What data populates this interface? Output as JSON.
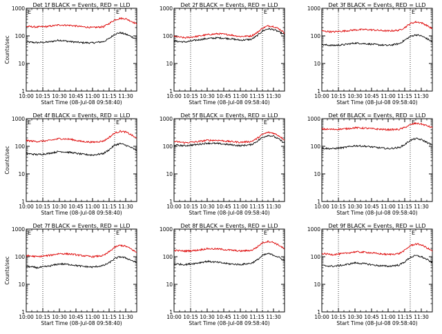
{
  "colors": {
    "events": "#000000",
    "lld": "#dd0000",
    "axes": "#000000",
    "background": "#ffffff"
  },
  "chart_data": [
    {
      "type": "line",
      "title": "Det 1f BLACK = Events, RED = LLD",
      "xlabel": "Start Time (08-Jul-08 09:58:40)",
      "ylabel": "Counts/sec",
      "xlim": [
        "10:00",
        "11:40"
      ],
      "ylim": [
        1,
        1000
      ],
      "yscale": "log",
      "xticks": [
        "10:00",
        "10:15",
        "10:30",
        "10:45",
        "11:00",
        "11:15",
        "11:30"
      ],
      "yticks": [
        "1",
        "10",
        "100",
        "1000"
      ],
      "event_markers": [
        {
          "time": "10:15",
          "label": ""
        },
        {
          "time": "11:20",
          "label": "E"
        },
        {
          "time": "10:00",
          "label": "E"
        }
      ],
      "grid": false,
      "series": [
        {
          "x": [
            "10:00",
            "10:10",
            "10:20",
            "10:30",
            "10:40",
            "10:50",
            "11:00",
            "11:10",
            "11:15",
            "11:20",
            "11:25",
            "11:30",
            "11:35",
            "11:40"
          ],
          "values": [
            60,
            57,
            60,
            70,
            62,
            57,
            56,
            62,
            80,
            115,
            130,
            115,
            95,
            75
          ],
          "color": "#000000"
        },
        {
          "x": [
            "10:00",
            "10:10",
            "10:20",
            "10:30",
            "10:40",
            "10:50",
            "11:00",
            "11:10",
            "11:15",
            "11:20",
            "11:25",
            "11:30",
            "11:35",
            "11:40"
          ],
          "values": [
            220,
            210,
            220,
            250,
            240,
            215,
            200,
            215,
            280,
            380,
            430,
            420,
            340,
            270
          ],
          "color": "#dd0000"
        }
      ]
    },
    {
      "type": "line",
      "title": "Det 2f BLACK = Events, RED = LLD",
      "xlabel": "Start Time (08-Jul-08 09:58:40)",
      "ylabel": "",
      "xlim": [
        "10:00",
        "11:40"
      ],
      "ylim": [
        1,
        1000
      ],
      "yscale": "log",
      "xticks": [
        "10:00",
        "10:15",
        "10:30",
        "10:45",
        "11:00",
        "11:15",
        "11:30"
      ],
      "yticks": [
        "1",
        "10",
        "100",
        "1000"
      ],
      "event_markers": [
        {
          "time": "10:15",
          "label": ""
        },
        {
          "time": "11:20",
          "label": "E"
        }
      ],
      "grid": false,
      "series": [
        {
          "x": [
            "10:00",
            "10:10",
            "10:20",
            "10:30",
            "10:40",
            "10:50",
            "11:00",
            "11:10",
            "11:15",
            "11:20",
            "11:25",
            "11:30",
            "11:35",
            "11:40"
          ],
          "values": [
            65,
            60,
            70,
            80,
            85,
            80,
            70,
            75,
            100,
            150,
            180,
            170,
            140,
            110
          ],
          "color": "#000000"
        },
        {
          "x": [
            "10:00",
            "10:10",
            "10:20",
            "10:30",
            "10:40",
            "10:50",
            "11:00",
            "11:10",
            "11:15",
            "11:20",
            "11:25",
            "11:30",
            "11:35",
            "11:40"
          ],
          "values": [
            95,
            85,
            95,
            110,
            120,
            110,
            95,
            100,
            130,
            190,
            230,
            220,
            180,
            130
          ],
          "color": "#dd0000"
        }
      ]
    },
    {
      "type": "line",
      "title": "Det 3f BLACK = Events, RED = LLD",
      "xlabel": "Start Time (08-Jul-08 09:58:40)",
      "ylabel": "",
      "xlim": [
        "10:00",
        "11:40"
      ],
      "ylim": [
        1,
        1000
      ],
      "yscale": "log",
      "xticks": [
        "10:00",
        "10:15",
        "10:30",
        "10:45",
        "11:00",
        "11:15",
        "11:30"
      ],
      "yticks": [
        "1",
        "10",
        "100",
        "1000"
      ],
      "event_markers": [
        {
          "time": "10:15",
          "label": ""
        },
        {
          "time": "11:20",
          "label": "E"
        }
      ],
      "grid": false,
      "series": [
        {
          "x": [
            "10:00",
            "10:10",
            "10:20",
            "10:30",
            "10:40",
            "10:50",
            "11:00",
            "11:10",
            "11:15",
            "11:20",
            "11:25",
            "11:30",
            "11:35",
            "11:40"
          ],
          "values": [
            48,
            45,
            48,
            55,
            52,
            48,
            45,
            52,
            70,
            95,
            110,
            100,
            80,
            60
          ],
          "color": "#000000"
        },
        {
          "x": [
            "10:00",
            "10:10",
            "10:20",
            "10:30",
            "10:40",
            "10:50",
            "11:00",
            "11:10",
            "11:15",
            "11:20",
            "11:25",
            "11:30",
            "11:35",
            "11:40"
          ],
          "values": [
            150,
            140,
            150,
            165,
            170,
            160,
            150,
            160,
            200,
            280,
            320,
            300,
            240,
            180
          ],
          "color": "#dd0000"
        }
      ]
    },
    {
      "type": "line",
      "title": "Det 4f BLACK = Events, RED = LLD",
      "xlabel": "Start Time (08-Jul-08 09:58:40)",
      "ylabel": "Counts/sec",
      "xlim": [
        "10:00",
        "11:40"
      ],
      "ylim": [
        1,
        1000
      ],
      "yscale": "log",
      "xticks": [
        "10:00",
        "10:15",
        "10:30",
        "10:45",
        "11:00",
        "11:15",
        "11:30"
      ],
      "yticks": [
        "1",
        "10",
        "100",
        "1000"
      ],
      "event_markers": [
        {
          "time": "10:15",
          "label": ""
        },
        {
          "time": "11:20",
          "label": "E"
        },
        {
          "time": "10:00",
          "label": "E"
        }
      ],
      "grid": false,
      "series": [
        {
          "x": [
            "10:00",
            "10:10",
            "10:20",
            "10:30",
            "10:40",
            "10:50",
            "11:00",
            "11:10",
            "11:15",
            "11:20",
            "11:25",
            "11:30",
            "11:35",
            "11:40"
          ],
          "values": [
            55,
            50,
            55,
            65,
            60,
            52,
            48,
            55,
            75,
            110,
            125,
            110,
            90,
            70
          ],
          "color": "#000000"
        },
        {
          "x": [
            "10:00",
            "10:10",
            "10:20",
            "10:30",
            "10:40",
            "10:50",
            "11:00",
            "11:10",
            "11:15",
            "11:20",
            "11:25",
            "11:30",
            "11:35",
            "11:40"
          ],
          "values": [
            160,
            150,
            160,
            190,
            180,
            150,
            140,
            155,
            210,
            300,
            350,
            330,
            260,
            190
          ],
          "color": "#dd0000"
        }
      ]
    },
    {
      "type": "line",
      "title": "Det 5f BLACK = Events, RED = LLD",
      "xlabel": "Start Time (08-Jul-08 09:58:40)",
      "ylabel": "",
      "xlim": [
        "10:00",
        "11:40"
      ],
      "ylim": [
        1,
        1000
      ],
      "yscale": "log",
      "xticks": [
        "10:00",
        "10:15",
        "10:30",
        "10:45",
        "11:00",
        "11:15",
        "11:30"
      ],
      "yticks": [
        "1",
        "10",
        "100",
        "1000"
      ],
      "event_markers": [
        {
          "time": "10:15",
          "label": ""
        },
        {
          "time": "11:20",
          "label": "E"
        }
      ],
      "grid": false,
      "series": [
        {
          "x": [
            "10:00",
            "10:10",
            "10:20",
            "10:30",
            "10:40",
            "10:50",
            "11:00",
            "11:10",
            "11:15",
            "11:20",
            "11:25",
            "11:30",
            "11:35",
            "11:40"
          ],
          "values": [
            110,
            105,
            115,
            130,
            125,
            115,
            105,
            115,
            150,
            210,
            250,
            230,
            180,
            130
          ],
          "color": "#000000"
        },
        {
          "x": [
            "10:00",
            "10:10",
            "10:20",
            "10:30",
            "10:40",
            "10:50",
            "11:00",
            "11:10",
            "11:15",
            "11:20",
            "11:25",
            "11:30",
            "11:35",
            "11:40"
          ],
          "values": [
            150,
            135,
            145,
            165,
            165,
            150,
            140,
            150,
            190,
            270,
            320,
            300,
            240,
            170
          ],
          "color": "#dd0000"
        }
      ]
    },
    {
      "type": "line",
      "title": "Det 6f BLACK = Events, RED = LLD",
      "xlabel": "Start Time (08-Jul-08 09:58:40)",
      "ylabel": "",
      "xlim": [
        "10:00",
        "11:40"
      ],
      "ylim": [
        1,
        1000
      ],
      "yscale": "log",
      "xticks": [
        "10:00",
        "10:15",
        "10:30",
        "10:45",
        "11:00",
        "11:15",
        "11:30"
      ],
      "yticks": [
        "1",
        "10",
        "100",
        "1000"
      ],
      "event_markers": [
        {
          "time": "10:15",
          "label": ""
        },
        {
          "time": "11:20",
          "label": "E"
        }
      ],
      "grid": false,
      "series": [
        {
          "x": [
            "10:00",
            "10:10",
            "10:20",
            "10:30",
            "10:40",
            "10:50",
            "11:00",
            "11:10",
            "11:15",
            "11:20",
            "11:25",
            "11:30",
            "11:35",
            "11:40"
          ],
          "values": [
            85,
            82,
            90,
            105,
            100,
            90,
            82,
            90,
            115,
            165,
            190,
            175,
            140,
            110
          ],
          "color": "#000000"
        },
        {
          "x": [
            "10:00",
            "10:10",
            "10:20",
            "10:30",
            "10:40",
            "10:50",
            "11:00",
            "11:10",
            "11:15",
            "11:20",
            "11:25",
            "11:30",
            "11:35",
            "11:40"
          ],
          "values": [
            420,
            410,
            425,
            470,
            450,
            420,
            400,
            410,
            480,
            600,
            680,
            640,
            560,
            470
          ],
          "color": "#dd0000"
        }
      ]
    },
    {
      "type": "line",
      "title": "Det 7f BLACK = Events, RED = LLD",
      "xlabel": "Start Time (08-Jul-08 09:58:40)",
      "ylabel": "Counts/sec",
      "xlim": [
        "10:00",
        "11:40"
      ],
      "ylim": [
        1,
        1000
      ],
      "yscale": "log",
      "xticks": [
        "10:00",
        "10:15",
        "10:30",
        "10:45",
        "11:00",
        "11:15",
        "11:30"
      ],
      "yticks": [
        "1",
        "10",
        "100",
        "1000"
      ],
      "event_markers": [
        {
          "time": "10:15",
          "label": ""
        },
        {
          "time": "11:20",
          "label": "E"
        },
        {
          "time": "10:00",
          "label": "E"
        }
      ],
      "grid": false,
      "series": [
        {
          "x": [
            "10:00",
            "10:10",
            "10:20",
            "10:30",
            "10:40",
            "10:50",
            "11:00",
            "11:10",
            "11:15",
            "11:20",
            "11:25",
            "11:30",
            "11:35",
            "11:40"
          ],
          "values": [
            45,
            40,
            45,
            55,
            52,
            45,
            42,
            48,
            60,
            85,
            100,
            90,
            75,
            60
          ],
          "color": "#000000"
        },
        {
          "x": [
            "10:00",
            "10:10",
            "10:20",
            "10:30",
            "10:40",
            "10:50",
            "11:00",
            "11:10",
            "11:15",
            "11:20",
            "11:25",
            "11:30",
            "11:35",
            "11:40"
          ],
          "values": [
            110,
            100,
            110,
            130,
            125,
            110,
            100,
            110,
            150,
            220,
            260,
            240,
            190,
            140
          ],
          "color": "#dd0000"
        }
      ]
    },
    {
      "type": "line",
      "title": "Det 8f BLACK = Events, RED = LLD",
      "xlabel": "Start Time (08-Jul-08 09:58:40)",
      "ylabel": "",
      "xlim": [
        "10:00",
        "11:40"
      ],
      "ylim": [
        1,
        1000
      ],
      "yscale": "log",
      "xticks": [
        "10:00",
        "10:15",
        "10:30",
        "10:45",
        "11:00",
        "11:15",
        "11:30"
      ],
      "yticks": [
        "1",
        "10",
        "100",
        "1000"
      ],
      "event_markers": [
        {
          "time": "10:15",
          "label": ""
        },
        {
          "time": "11:20",
          "label": "E"
        }
      ],
      "grid": false,
      "series": [
        {
          "x": [
            "10:00",
            "10:10",
            "10:20",
            "10:30",
            "10:40",
            "10:50",
            "11:00",
            "11:10",
            "11:15",
            "11:20",
            "11:25",
            "11:30",
            "11:35",
            "11:40"
          ],
          "values": [
            55,
            52,
            58,
            68,
            62,
            55,
            52,
            58,
            75,
            110,
            130,
            115,
            95,
            70
          ],
          "color": "#000000"
        },
        {
          "x": [
            "10:00",
            "10:10",
            "10:20",
            "10:30",
            "10:40",
            "10:50",
            "11:00",
            "11:10",
            "11:15",
            "11:20",
            "11:25",
            "11:30",
            "11:35",
            "11:40"
          ],
          "values": [
            170,
            160,
            170,
            195,
            190,
            175,
            160,
            170,
            220,
            320,
            360,
            330,
            260,
            190
          ],
          "color": "#dd0000"
        }
      ]
    },
    {
      "type": "line",
      "title": "Det 9f BLACK = Events, RED = LLD",
      "xlabel": "Start Time (08-Jul-08 09:58:40)",
      "ylabel": "",
      "xlim": [
        "10:00",
        "11:40"
      ],
      "ylim": [
        1,
        1000
      ],
      "yscale": "log",
      "xticks": [
        "10:00",
        "10:15",
        "10:30",
        "10:45",
        "11:00",
        "11:15",
        "11:30"
      ],
      "yticks": [
        "1",
        "10",
        "100",
        "1000"
      ],
      "event_markers": [
        {
          "time": "10:15",
          "label": ""
        },
        {
          "time": "11:20",
          "label": "E"
        }
      ],
      "grid": false,
      "series": [
        {
          "x": [
            "10:00",
            "10:10",
            "10:20",
            "10:30",
            "10:40",
            "10:50",
            "11:00",
            "11:10",
            "11:15",
            "11:20",
            "11:25",
            "11:30",
            "11:35",
            "11:40"
          ],
          "values": [
            48,
            45,
            50,
            60,
            55,
            48,
            45,
            50,
            65,
            95,
            110,
            100,
            80,
            60
          ],
          "color": "#000000"
        },
        {
          "x": [
            "10:00",
            "10:10",
            "10:20",
            "10:30",
            "10:40",
            "10:50",
            "11:00",
            "11:10",
            "11:15",
            "11:20",
            "11:25",
            "11:30",
            "11:35",
            "11:40"
          ],
          "values": [
            130,
            120,
            130,
            150,
            145,
            130,
            120,
            130,
            170,
            250,
            290,
            270,
            210,
            160
          ],
          "color": "#dd0000"
        }
      ]
    }
  ]
}
